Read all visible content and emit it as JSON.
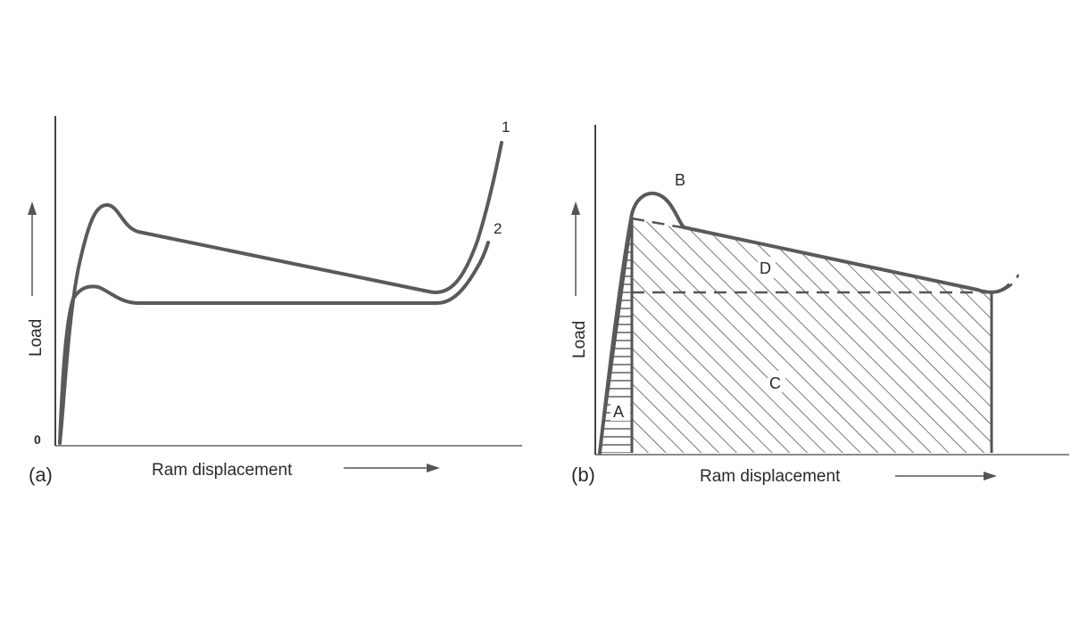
{
  "panel_a": {
    "panel_label": "(a)",
    "origin_label": "0",
    "y_axis_label": "Load",
    "x_axis_label": "Ram displacement",
    "curve_labels": [
      "1",
      "2"
    ]
  },
  "panel_b": {
    "panel_label": "(b)",
    "y_axis_label": "Load",
    "x_axis_label": "Ram displacement",
    "region_labels": {
      "A": "A",
      "B": "B",
      "C": "C",
      "D": "D"
    }
  },
  "colors": {
    "curve": "#5a5a5a",
    "axis": "#444444",
    "hatch": "#555555"
  }
}
